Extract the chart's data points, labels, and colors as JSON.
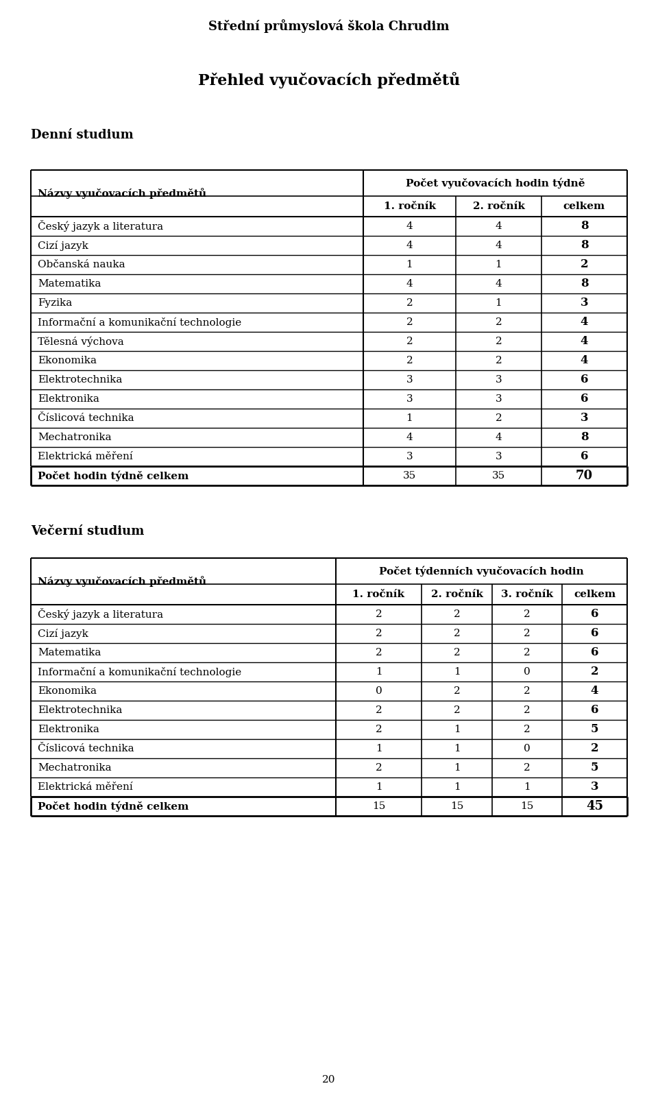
{
  "page_title": "Střední průmyslová škola Chrudim",
  "subtitle": "Přehled vyučovacích předmětů",
  "section1_title": "Denní studium",
  "section2_title": "Večerní studium",
  "table1_header_col0": "Názvy vyučovacích předmětů",
  "table1_header_span": "Počet vyučovacích hodin týdně",
  "table1_subheaders": [
    "1. ročník",
    "2. ročník",
    "celkem"
  ],
  "table1_rows": [
    [
      "Český jazyk a literatura",
      "4",
      "4",
      "8"
    ],
    [
      "Cizí jazyk",
      "4",
      "4",
      "8"
    ],
    [
      "Občanská nauka",
      "1",
      "1",
      "2"
    ],
    [
      "Matematika",
      "4",
      "4",
      "8"
    ],
    [
      "Fyzika",
      "2",
      "1",
      "3"
    ],
    [
      "Informační a komunikační technologie",
      "2",
      "2",
      "4"
    ],
    [
      "Tělesná výchova",
      "2",
      "2",
      "4"
    ],
    [
      "Ekonomika",
      "2",
      "2",
      "4"
    ],
    [
      "Elektrotechnika",
      "3",
      "3",
      "6"
    ],
    [
      "Elektronika",
      "3",
      "3",
      "6"
    ],
    [
      "Číslicová technika",
      "1",
      "2",
      "3"
    ],
    [
      "Mechatronika",
      "4",
      "4",
      "8"
    ],
    [
      "Elektrická měření",
      "3",
      "3",
      "6"
    ]
  ],
  "table1_footer": [
    "Počet hodin týdně celkem",
    "35",
    "35",
    "70"
  ],
  "table2_header_col0": "Názvy vyučovacích předmětů",
  "table2_header_span": "Počet týdenních vyučovacích hodin",
  "table2_subheaders": [
    "1. ročník",
    "2. ročník",
    "3. ročník",
    "celkem"
  ],
  "table2_rows": [
    [
      "Český jazyk a literatura",
      "2",
      "2",
      "2",
      "6"
    ],
    [
      "Cizí jazyk",
      "2",
      "2",
      "2",
      "6"
    ],
    [
      "Matematika",
      "2",
      "2",
      "2",
      "6"
    ],
    [
      "Informační a komunikační technologie",
      "1",
      "1",
      "0",
      "2"
    ],
    [
      "Ekonomika",
      "0",
      "2",
      "2",
      "4"
    ],
    [
      "Elektrotechnika",
      "2",
      "2",
      "2",
      "6"
    ],
    [
      "Elektronika",
      "2",
      "1",
      "2",
      "5"
    ],
    [
      "Číslicová technika",
      "1",
      "1",
      "0",
      "2"
    ],
    [
      "Mechatronika",
      "2",
      "1",
      "2",
      "5"
    ],
    [
      "Elektrická měření",
      "1",
      "1",
      "1",
      "3"
    ]
  ],
  "table2_footer": [
    "Počet hodin týdně celkem",
    "15",
    "15",
    "15",
    "45"
  ],
  "page_number": "20",
  "bg_color": "#ffffff",
  "text_color": "#000000"
}
